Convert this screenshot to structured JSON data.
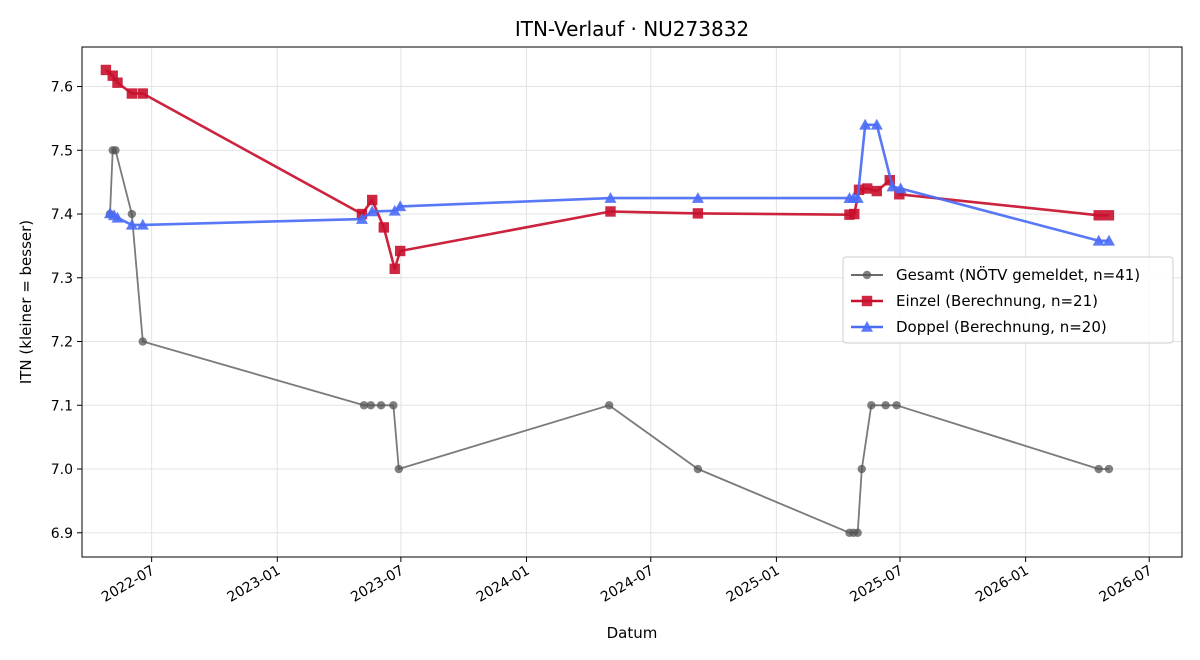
{
  "chart_data": {
    "type": "line",
    "title": "ITN-Verlauf · NU273832",
    "xlabel": "Datum",
    "ylabel": "ITN  (kleiner = besser)",
    "x_ticks": [
      "2022-07",
      "2023-01",
      "2023-07",
      "2024-01",
      "2024-07",
      "2025-01",
      "2025-07",
      "2026-01",
      "2026-07"
    ],
    "y_ticks": [
      "6.9",
      "7.0",
      "7.1",
      "7.2",
      "7.3",
      "7.4",
      "7.5",
      "7.6"
    ],
    "xlim": [
      "2022-03-21",
      "2026-08-18"
    ],
    "ylim": [
      6.862,
      7.662
    ],
    "grid": true,
    "legend_position": "center-right",
    "series": [
      {
        "name": "Gesamt (NÖTV gemeldet, n=41)",
        "color": "#555555",
        "marker": "circle",
        "points": [
          [
            "2022-05-01",
            7.4
          ],
          [
            "2022-05-05",
            7.5
          ],
          [
            "2022-05-09",
            7.5
          ],
          [
            "2022-06-02",
            7.4
          ],
          [
            "2022-06-18",
            7.2
          ],
          [
            "2023-05-08",
            7.1
          ],
          [
            "2023-05-18",
            7.1
          ],
          [
            "2023-06-02",
            7.1
          ],
          [
            "2023-06-20",
            7.1
          ],
          [
            "2023-06-28",
            7.0
          ],
          [
            "2024-05-01",
            7.1
          ],
          [
            "2024-09-08",
            7.0
          ],
          [
            "2025-04-18",
            6.9
          ],
          [
            "2025-04-24",
            6.9
          ],
          [
            "2025-04-30",
            6.9
          ],
          [
            "2025-05-06",
            7.0
          ],
          [
            "2025-05-20",
            7.1
          ],
          [
            "2025-06-10",
            7.1
          ],
          [
            "2025-06-26",
            7.1
          ],
          [
            "2026-04-18",
            7.0
          ],
          [
            "2026-05-03",
            7.0
          ]
        ]
      },
      {
        "name": "Einzel (Berechnung, n=21)",
        "color": "#c8102e",
        "marker": "square",
        "points": [
          [
            "2022-04-25",
            7.626
          ],
          [
            "2022-05-05",
            7.617
          ],
          [
            "2022-05-12",
            7.606
          ],
          [
            "2022-06-02",
            7.589
          ],
          [
            "2022-06-18",
            7.589
          ],
          [
            "2023-05-05",
            7.4
          ],
          [
            "2023-05-20",
            7.422
          ],
          [
            "2023-06-06",
            7.379
          ],
          [
            "2023-06-22",
            7.314
          ],
          [
            "2023-06-30",
            7.342
          ],
          [
            "2024-05-03",
            7.404
          ],
          [
            "2024-09-08",
            7.401
          ],
          [
            "2025-04-18",
            7.399
          ],
          [
            "2025-04-25",
            7.4
          ],
          [
            "2025-05-02",
            7.438
          ],
          [
            "2025-05-14",
            7.44
          ],
          [
            "2025-05-28",
            7.436
          ],
          [
            "2025-06-16",
            7.453
          ],
          [
            "2025-06-30",
            7.431
          ],
          [
            "2026-04-18",
            7.398
          ],
          [
            "2026-05-03",
            7.398
          ]
        ]
      },
      {
        "name": "Doppel (Berechnung, n=20)",
        "color": "#4a6cf7",
        "marker": "triangle",
        "points": [
          [
            "2022-05-01",
            7.401
          ],
          [
            "2022-05-07",
            7.398
          ],
          [
            "2022-05-12",
            7.394
          ],
          [
            "2022-06-02",
            7.383
          ],
          [
            "2022-06-18",
            7.383
          ],
          [
            "2023-05-05",
            7.392
          ],
          [
            "2023-05-20",
            7.404
          ],
          [
            "2023-06-22",
            7.405
          ],
          [
            "2023-06-30",
            7.412
          ],
          [
            "2024-05-03",
            7.425
          ],
          [
            "2024-09-08",
            7.425
          ],
          [
            "2025-04-18",
            7.425
          ],
          [
            "2025-04-24",
            7.425
          ],
          [
            "2025-04-30",
            7.425
          ],
          [
            "2025-05-11",
            7.54
          ],
          [
            "2025-05-28",
            7.54
          ],
          [
            "2025-06-20",
            7.443
          ],
          [
            "2025-07-02",
            7.44
          ],
          [
            "2026-04-18",
            7.358
          ],
          [
            "2026-05-03",
            7.358
          ]
        ]
      }
    ]
  }
}
